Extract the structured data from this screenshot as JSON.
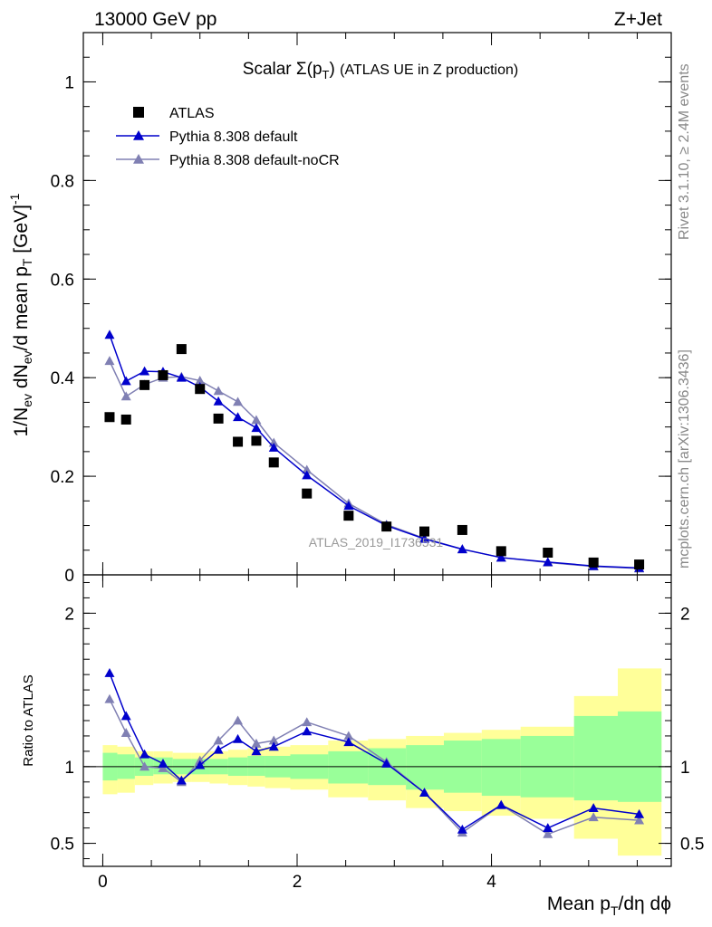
{
  "header": {
    "left": "13000 GeV pp",
    "right": "Z+Jet"
  },
  "side_labels": {
    "rivet": "Rivet 3.1.10, ≥ 2.4M events",
    "source": "mcplots.cern.ch [arXiv:1306.3436]"
  },
  "chart_data": [
    {
      "type": "scatter",
      "panel": "main",
      "title": "Scalar Σ(p_T) (ATLAS UE in Z production)",
      "ylabel": "1/N_ev dN_ev/d mean p_T [GeV]^-1",
      "xlim": [
        -0.2,
        5.85
      ],
      "ylim": [
        0,
        1.1
      ],
      "yticks": [
        0,
        0.2,
        0.4,
        0.6,
        0.8,
        1
      ],
      "ytick_labels": [
        "0",
        "0.2",
        "0.4",
        "0.6",
        "0.8",
        "1"
      ],
      "watermark": "ATLAS_2019_I1736531",
      "legend_position": "top-left",
      "series": [
        {
          "name": "ATLAS",
          "style": "marker-square",
          "color": "#000000",
          "x": [
            0.07,
            0.24,
            0.43,
            0.62,
            0.81,
            1.0,
            1.19,
            1.39,
            1.58,
            1.76,
            2.1,
            2.53,
            2.92,
            3.31,
            3.7,
            4.1,
            4.58,
            5.05,
            5.52
          ],
          "y": [
            0.32,
            0.315,
            0.385,
            0.405,
            0.458,
            0.377,
            0.317,
            0.27,
            0.272,
            0.228,
            0.165,
            0.12,
            0.098,
            0.088,
            0.091,
            0.048,
            0.045,
            0.025,
            0.021
          ]
        },
        {
          "name": "Pythia 8.308 default",
          "style": "line-triangle",
          "color": "#0000cc",
          "x": [
            0.07,
            0.24,
            0.43,
            0.62,
            0.81,
            1.0,
            1.19,
            1.39,
            1.58,
            1.76,
            2.1,
            2.53,
            2.92,
            3.31,
            3.7,
            4.1,
            4.58,
            5.05,
            5.52
          ],
          "y": [
            0.487,
            0.393,
            0.413,
            0.412,
            0.4,
            0.381,
            0.352,
            0.32,
            0.298,
            0.258,
            0.202,
            0.14,
            0.1,
            0.073,
            0.052,
            0.035,
            0.026,
            0.018,
            0.014
          ]
        },
        {
          "name": "Pythia 8.308 default-noCR",
          "style": "line-triangle",
          "color": "#8080b3",
          "x": [
            0.07,
            0.24,
            0.43,
            0.62,
            0.81,
            1.0,
            1.19,
            1.39,
            1.58,
            1.76,
            2.1,
            2.53,
            2.92,
            3.31,
            3.7,
            4.1,
            4.58,
            5.05,
            5.52
          ],
          "y": [
            0.434,
            0.362,
            0.386,
            0.4,
            0.402,
            0.394,
            0.373,
            0.351,
            0.314,
            0.268,
            0.213,
            0.145,
            0.102,
            0.074,
            0.052,
            0.035,
            0.025,
            0.017,
            0.013
          ]
        }
      ]
    },
    {
      "type": "line",
      "panel": "ratio",
      "xlabel": "Mean p_T/dη dϕ",
      "ylabel": "Ratio to ATLAS",
      "xlim": [
        -0.2,
        5.85
      ],
      "ylim": [
        0.35,
        2.25
      ],
      "xticks": [
        0,
        2,
        4
      ],
      "xtick_labels": [
        "0",
        "2",
        "4"
      ],
      "yticks": [
        0.5,
        1,
        2
      ],
      "ytick_labels": [
        "0.5",
        "1",
        "2"
      ],
      "bands": {
        "edges": [
          0,
          0.15,
          0.33,
          0.52,
          0.72,
          0.91,
          1.1,
          1.29,
          1.49,
          1.67,
          1.93,
          2.32,
          2.73,
          3.12,
          3.51,
          3.9,
          4.3,
          4.85,
          5.3,
          5.75
        ],
        "yellow_hi": [
          1.14,
          1.13,
          1.1,
          1.1,
          1.09,
          1.09,
          1.1,
          1.11,
          1.12,
          1.13,
          1.14,
          1.17,
          1.18,
          1.2,
          1.22,
          1.24,
          1.26,
          1.46,
          1.64
        ],
        "yellow_lo": [
          0.82,
          0.83,
          0.88,
          0.89,
          0.9,
          0.9,
          0.89,
          0.88,
          0.87,
          0.86,
          0.85,
          0.8,
          0.78,
          0.73,
          0.71,
          0.68,
          0.66,
          0.53,
          0.42
        ],
        "green_hi": [
          1.09,
          1.08,
          1.06,
          1.06,
          1.05,
          1.05,
          1.05,
          1.06,
          1.07,
          1.07,
          1.08,
          1.1,
          1.12,
          1.14,
          1.17,
          1.18,
          1.2,
          1.33,
          1.36
        ],
        "green_lo": [
          0.91,
          0.92,
          0.94,
          0.95,
          0.95,
          0.95,
          0.95,
          0.94,
          0.94,
          0.93,
          0.92,
          0.89,
          0.88,
          0.85,
          0.83,
          0.81,
          0.8,
          0.78,
          0.77
        ]
      },
      "series": [
        {
          "name": "Pythia 8.308 default",
          "color": "#0000cc",
          "x": [
            0.07,
            0.24,
            0.43,
            0.62,
            0.81,
            1.0,
            1.19,
            1.39,
            1.58,
            1.76,
            2.1,
            2.53,
            2.92,
            3.31,
            3.7,
            4.1,
            4.58,
            5.05,
            5.52
          ],
          "y": [
            1.61,
            1.33,
            1.08,
            1.02,
            0.91,
            1.01,
            1.11,
            1.18,
            1.1,
            1.13,
            1.23,
            1.16,
            1.02,
            0.83,
            0.59,
            0.75,
            0.6,
            0.73,
            0.69
          ]
        },
        {
          "name": "Pythia 8.308 default-noCR",
          "color": "#8080b3",
          "x": [
            0.07,
            0.24,
            0.43,
            0.62,
            0.81,
            1.0,
            1.19,
            1.39,
            1.58,
            1.76,
            2.1,
            2.53,
            2.92,
            3.31,
            3.7,
            4.1,
            4.58,
            5.05,
            5.52
          ],
          "y": [
            1.44,
            1.22,
            1.0,
            0.99,
            0.9,
            1.04,
            1.17,
            1.3,
            1.15,
            1.17,
            1.29,
            1.2,
            1.03,
            0.83,
            0.57,
            0.75,
            0.56,
            0.67,
            0.65
          ]
        }
      ]
    }
  ],
  "colors": {
    "yellow_band": "#ffff99",
    "green_band": "#99ff99"
  }
}
